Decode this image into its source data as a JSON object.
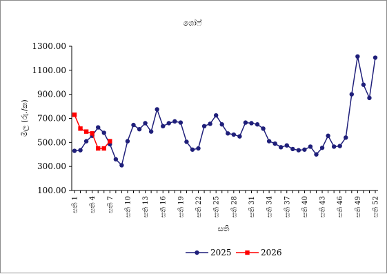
{
  "chart_data": {
    "type": "line",
    "title": "ශෝෆ්",
    "xlabel": "සති",
    "ylabel": "මිල (රු./ක)",
    "ylim": [
      100,
      1300
    ],
    "yticks": [
      "100.00",
      "300.00",
      "500.00",
      "700.00",
      "900.00",
      "1100.00",
      "1300.00"
    ],
    "x_tick_labels": [
      "සති 1",
      "සති 4",
      "සති 7",
      "සති 10",
      "සති 13",
      "සති 16",
      "සති 19",
      "සති 22",
      "සති 25",
      "සති 28",
      "සති 31",
      "සති 34",
      "සති 37",
      "සති 40",
      "සති 43",
      "සති 46",
      "සති 49",
      "සති 52"
    ],
    "x_tick_weeks": [
      1,
      4,
      7,
      10,
      13,
      16,
      19,
      22,
      25,
      28,
      31,
      34,
      37,
      40,
      43,
      46,
      49,
      52
    ],
    "x_range": [
      1,
      52
    ],
    "grid": false,
    "legend_position": "bottom",
    "series": [
      {
        "name": "2025",
        "color": "#1f1f7a",
        "marker": "circle",
        "values": [
          430,
          435,
          510,
          555,
          625,
          580,
          485,
          360,
          310,
          510,
          645,
          610,
          660,
          590,
          775,
          635,
          660,
          675,
          665,
          505,
          440,
          450,
          635,
          655,
          725,
          650,
          575,
          565,
          550,
          665,
          660,
          650,
          615,
          510,
          490,
          460,
          475,
          445,
          435,
          440,
          465,
          400,
          455,
          555,
          465,
          470,
          540,
          900,
          1215,
          980,
          870,
          1205
        ]
      },
      {
        "name": "2026",
        "color": "#ff0000",
        "marker": "square",
        "values": [
          730,
          615,
          590,
          575,
          450,
          450,
          510
        ]
      }
    ]
  }
}
